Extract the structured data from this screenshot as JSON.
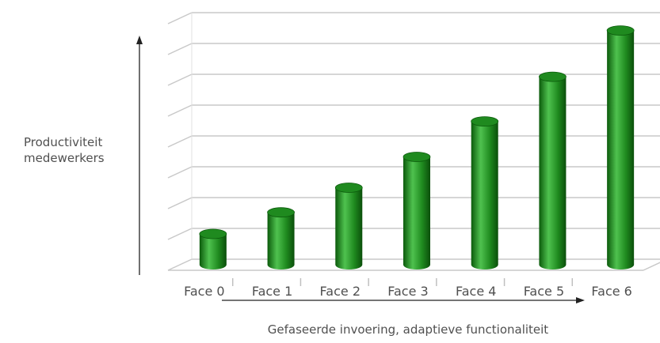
{
  "chart_data": {
    "type": "bar",
    "style": "3d-cylinder",
    "categories": [
      "Face 0",
      "Face 1",
      "Face 2",
      "Face 3",
      "Face 4",
      "Face 5",
      "Face 6"
    ],
    "values": [
      1.0,
      1.7,
      2.5,
      3.5,
      4.65,
      6.1,
      7.6
    ],
    "ylim": [
      0,
      8
    ],
    "grid": true,
    "y_tick_labels_shown": false,
    "ylabel_line1": "Productiviteit",
    "ylabel_line2": "medewerkers",
    "xlabel": "Gefaseerde invoering, adaptieve functionaliteit",
    "bar_color": "#1f8a1f",
    "bar_dark": "#0b5a0b",
    "bar_light": "#4fc24f",
    "grid_color": "#c8c8c8"
  }
}
